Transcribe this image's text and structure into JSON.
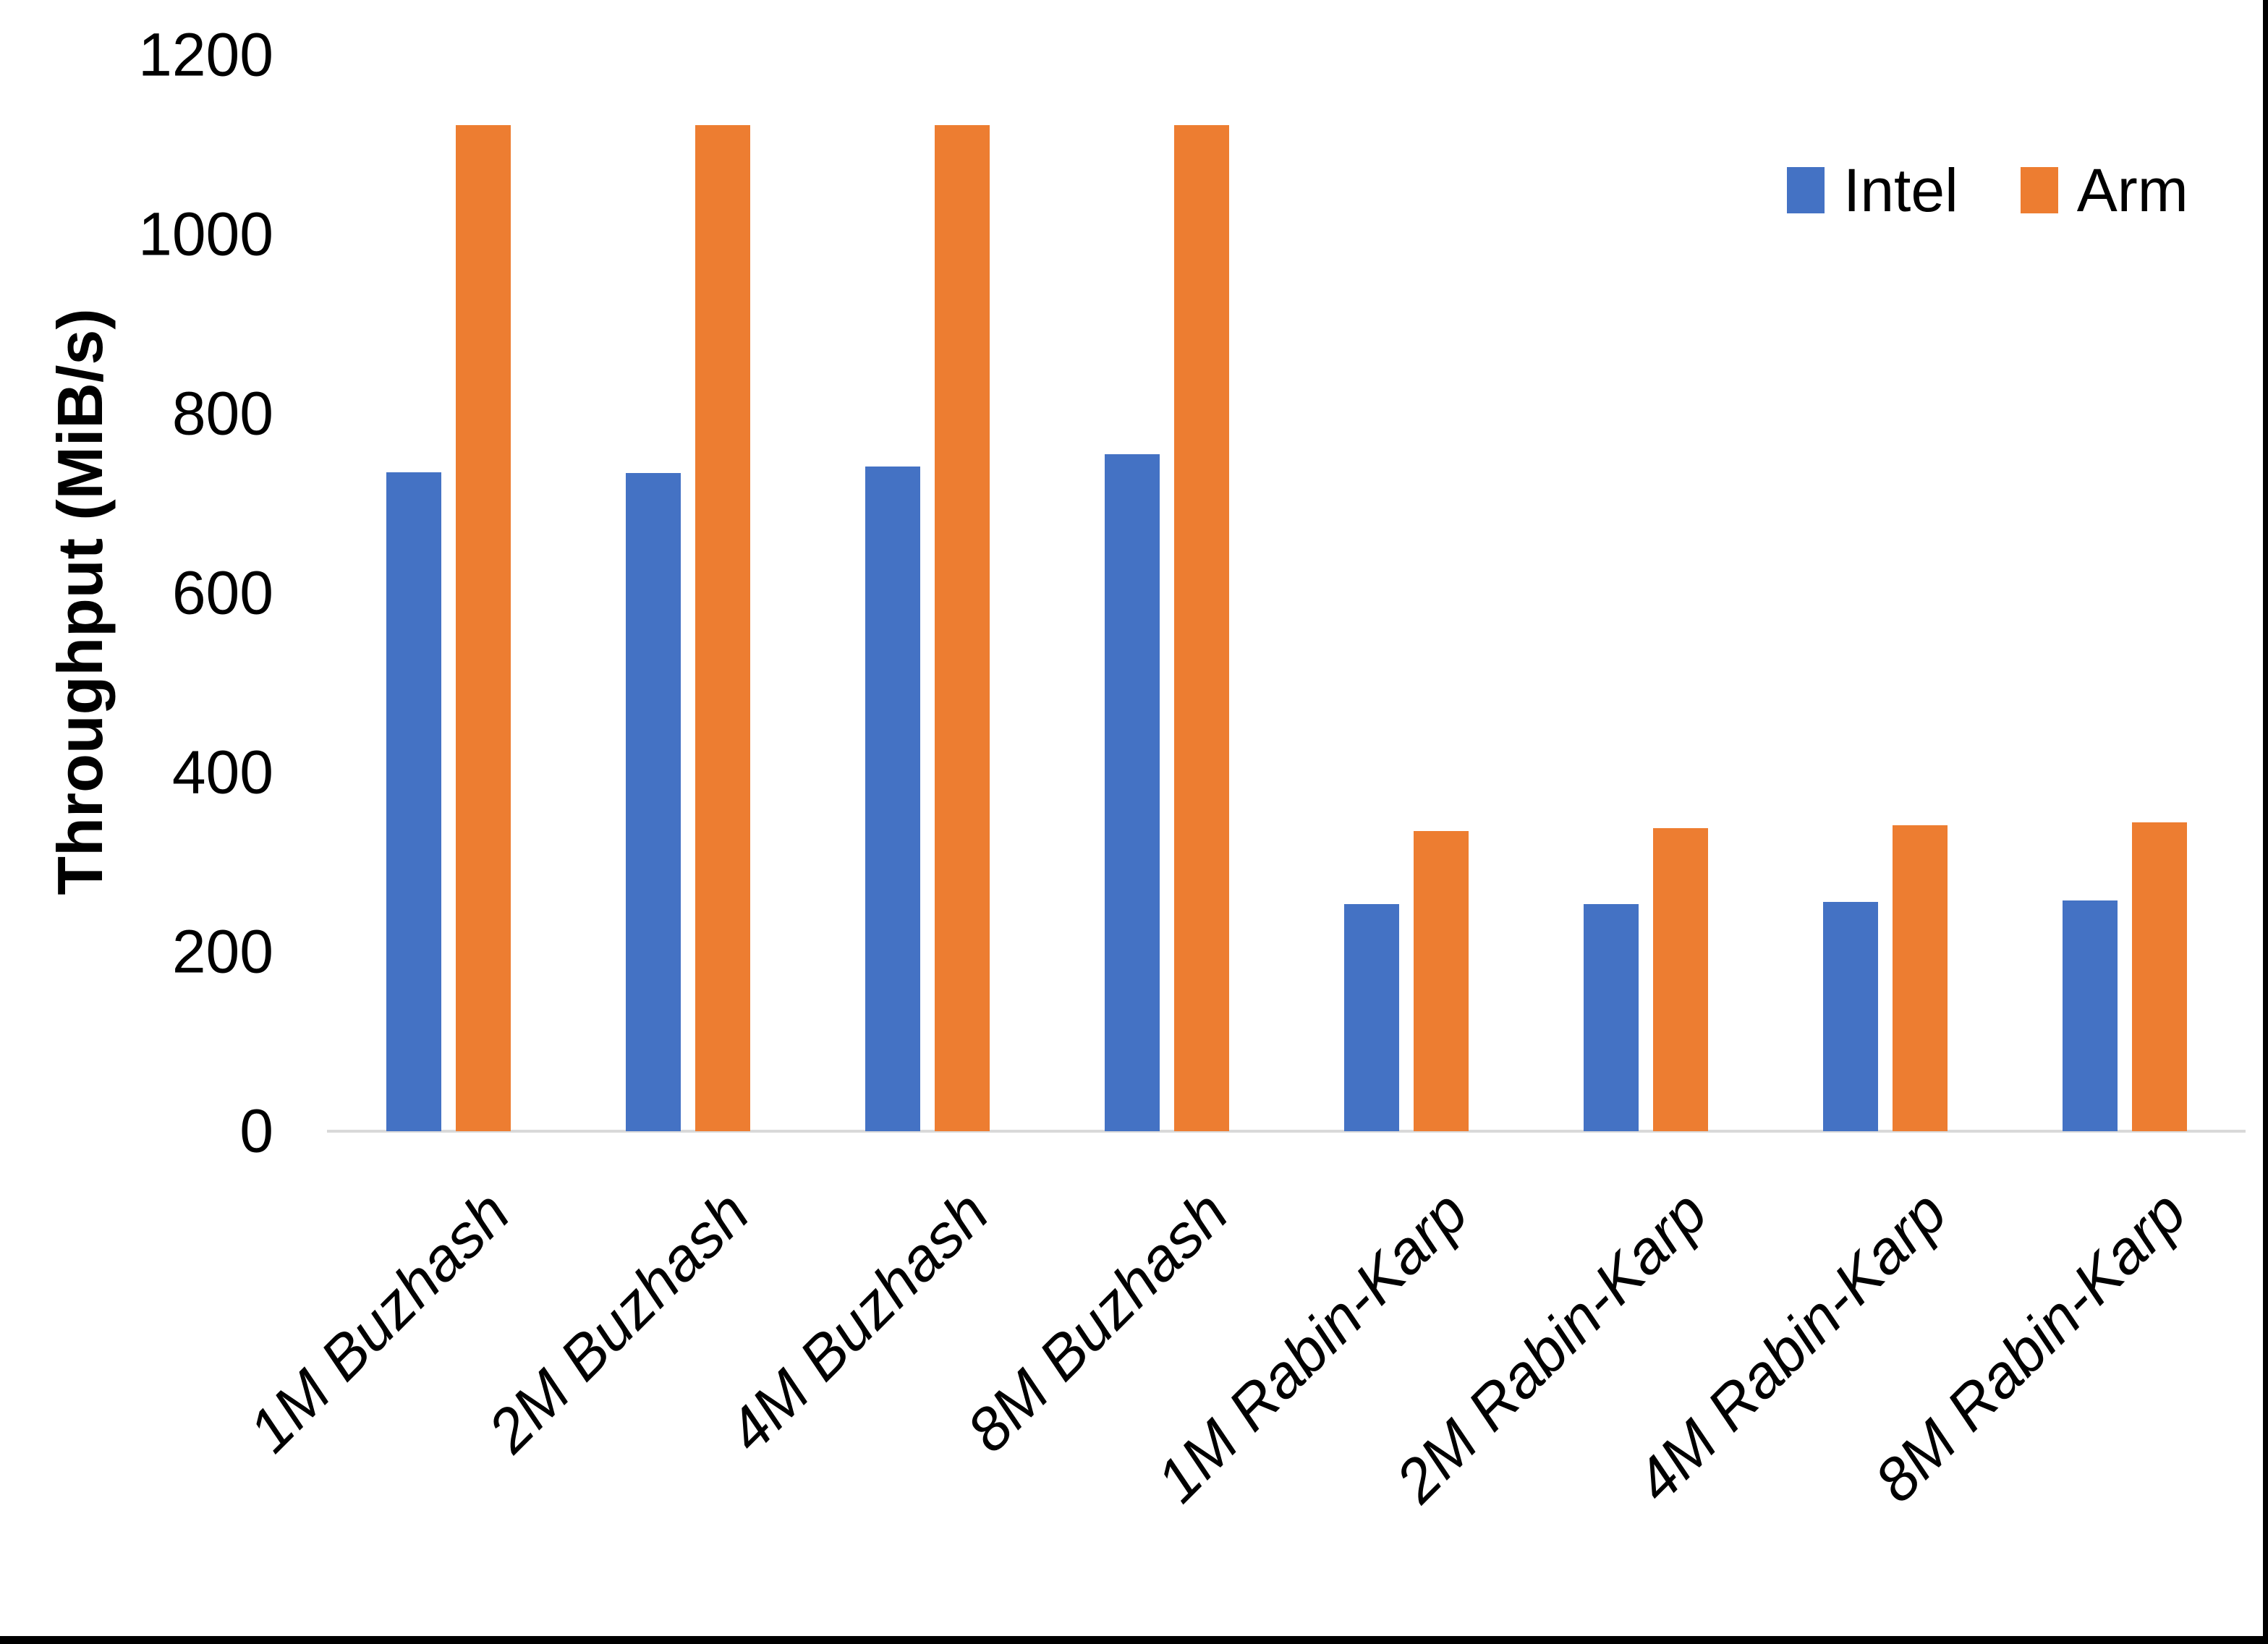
{
  "chart_data": {
    "type": "bar",
    "title": "",
    "ylabel": "Throughput (MiB/s)",
    "xlabel": "",
    "ylim": [
      0,
      1200
    ],
    "yticks": [
      0,
      200,
      400,
      600,
      800,
      1000,
      1200
    ],
    "grid": false,
    "legend_position": "top-right",
    "axis_line_color": "#D9D9D9",
    "categories": [
      "1M Buzhash",
      "2M Buzhash",
      "4M Buzhash",
      "8M Buzhash",
      "1M Rabin-Karp",
      "2M Rabin-Karp",
      "4M Rabin-Karp",
      "8M Rabin-Karp"
    ],
    "series": [
      {
        "name": "Intel",
        "color": "#4472C4",
        "values": [
          735,
          734,
          741,
          755,
          253,
          253,
          256,
          257
        ]
      },
      {
        "name": "Arm",
        "color": "#ED7D31",
        "values": [
          1122,
          1122,
          1122,
          1122,
          335,
          338,
          341,
          344
        ]
      }
    ]
  }
}
